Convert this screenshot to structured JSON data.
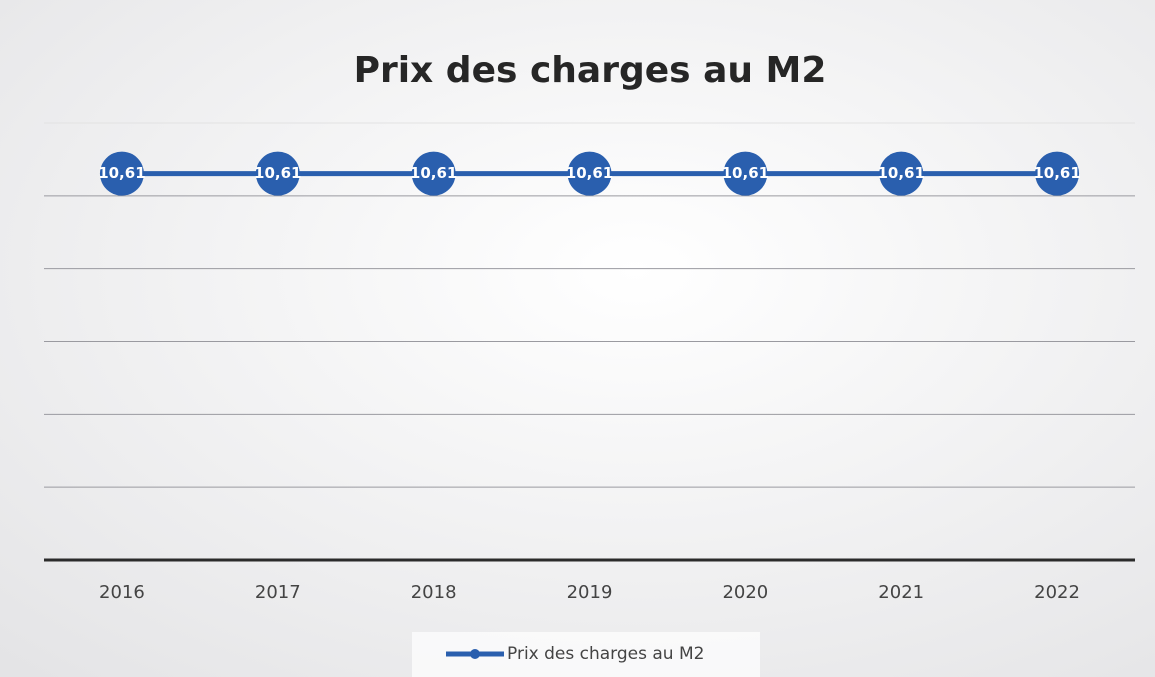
{
  "chart_data": {
    "type": "line",
    "title": "Prix des charges au M2",
    "categories": [
      "2016",
      "2017",
      "2018",
      "2019",
      "2020",
      "2021",
      "2022"
    ],
    "series": [
      {
        "name": "Prix des charges au M2",
        "color": "#2a5fae",
        "values": [
          10.61,
          10.61,
          10.61,
          10.61,
          10.61,
          10.61,
          10.61
        ],
        "value_labels": [
          "10,61",
          "10,61",
          "10,61",
          "10,61",
          "10,61",
          "10,61",
          "10,61"
        ]
      }
    ],
    "ylim": [
      0,
      12
    ],
    "yticks": [
      0,
      2,
      4,
      6,
      8,
      10,
      12
    ],
    "ytick_labels": false,
    "grid": true,
    "legend": "bottom"
  }
}
